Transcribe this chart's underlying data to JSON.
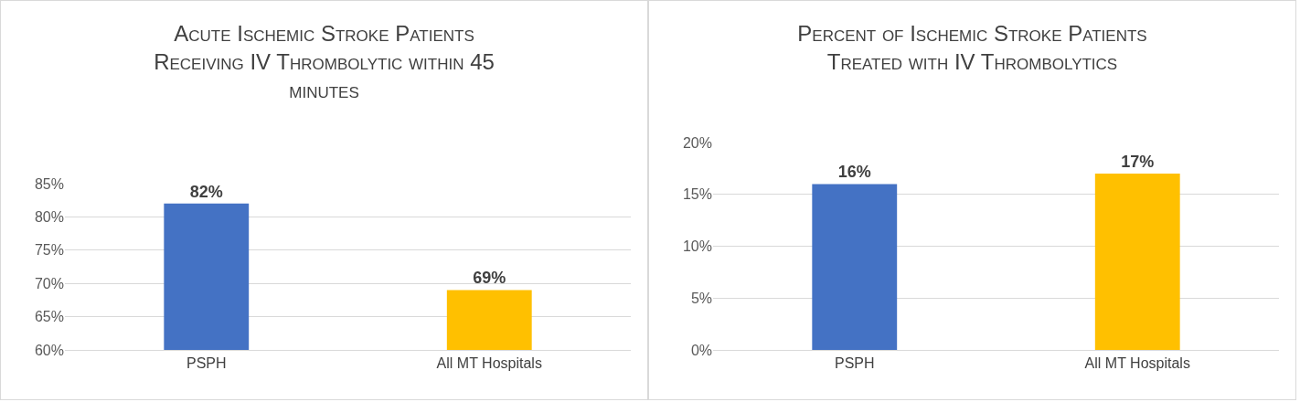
{
  "chart_data": [
    {
      "type": "bar",
      "title": "Acute Ischemic Stroke Patients Receiving IV Thrombolytic within 45 minutes",
      "categories": [
        "PSPH",
        "All MT Hospitals"
      ],
      "values": [
        82,
        69
      ],
      "colors": [
        "#4472c4",
        "#ffc000"
      ],
      "value_labels": [
        "82%",
        "69%"
      ],
      "ylim": [
        60,
        85
      ],
      "yticks": [
        {
          "value": 60,
          "label": "60%"
        },
        {
          "value": 65,
          "label": "65%"
        },
        {
          "value": 70,
          "label": "70%"
        },
        {
          "value": 75,
          "label": "75%"
        },
        {
          "value": 80,
          "label": "80%"
        },
        {
          "value": 85,
          "label": "85%"
        }
      ],
      "grid": "y"
    },
    {
      "type": "bar",
      "title": "Percent of Ischemic Stroke Patients Treated with IV Thrombolytics",
      "categories": [
        "PSPH",
        "All MT Hospitals"
      ],
      "values": [
        16,
        17
      ],
      "colors": [
        "#4472c4",
        "#ffc000"
      ],
      "value_labels": [
        "16%",
        "17%"
      ],
      "ylim": [
        0,
        20
      ],
      "yticks": [
        {
          "value": 0,
          "label": "0%"
        },
        {
          "value": 5,
          "label": "5%"
        },
        {
          "value": 10,
          "label": "10%"
        },
        {
          "value": 15,
          "label": "15%"
        },
        {
          "value": 20,
          "label": "20%"
        }
      ],
      "grid": "y"
    }
  ]
}
